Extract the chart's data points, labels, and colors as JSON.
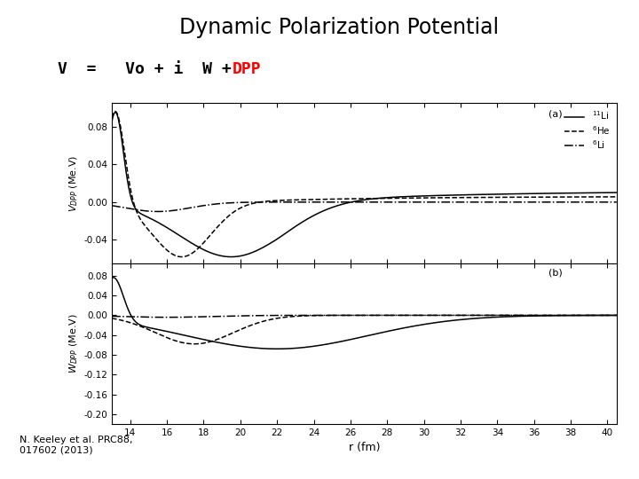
{
  "title": "Dynamic Polarization Potential",
  "xlabel": "r (fm)",
  "ylabel_top": "V$_{DPP}$ (Me.V)",
  "ylabel_bot": "W$_{DPP}$ (Me.V)",
  "xmin": 13.0,
  "xmax": 40.5,
  "ytop_min": -0.065,
  "ytop_max": 0.105,
  "ybot_min": -0.22,
  "ybot_max": 0.105,
  "xticks": [
    14,
    16,
    18,
    20,
    22,
    24,
    26,
    28,
    30,
    32,
    34,
    36,
    38,
    40
  ],
  "yticks_top": [
    -0.04,
    0.0,
    0.04,
    0.08
  ],
  "yticks_bot": [
    -0.2,
    -0.16,
    -0.12,
    -0.08,
    -0.04,
    0.0,
    0.04,
    0.08
  ],
  "legend_labels": [
    "$^{11}$Li",
    "$^{6}$He",
    "$^{6}$Li"
  ],
  "label_a": "(a)",
  "label_b": "(b)",
  "citation": "N. Keeley et al. PRC88,\n017602 (2013)",
  "bg_color": "#ffffff"
}
